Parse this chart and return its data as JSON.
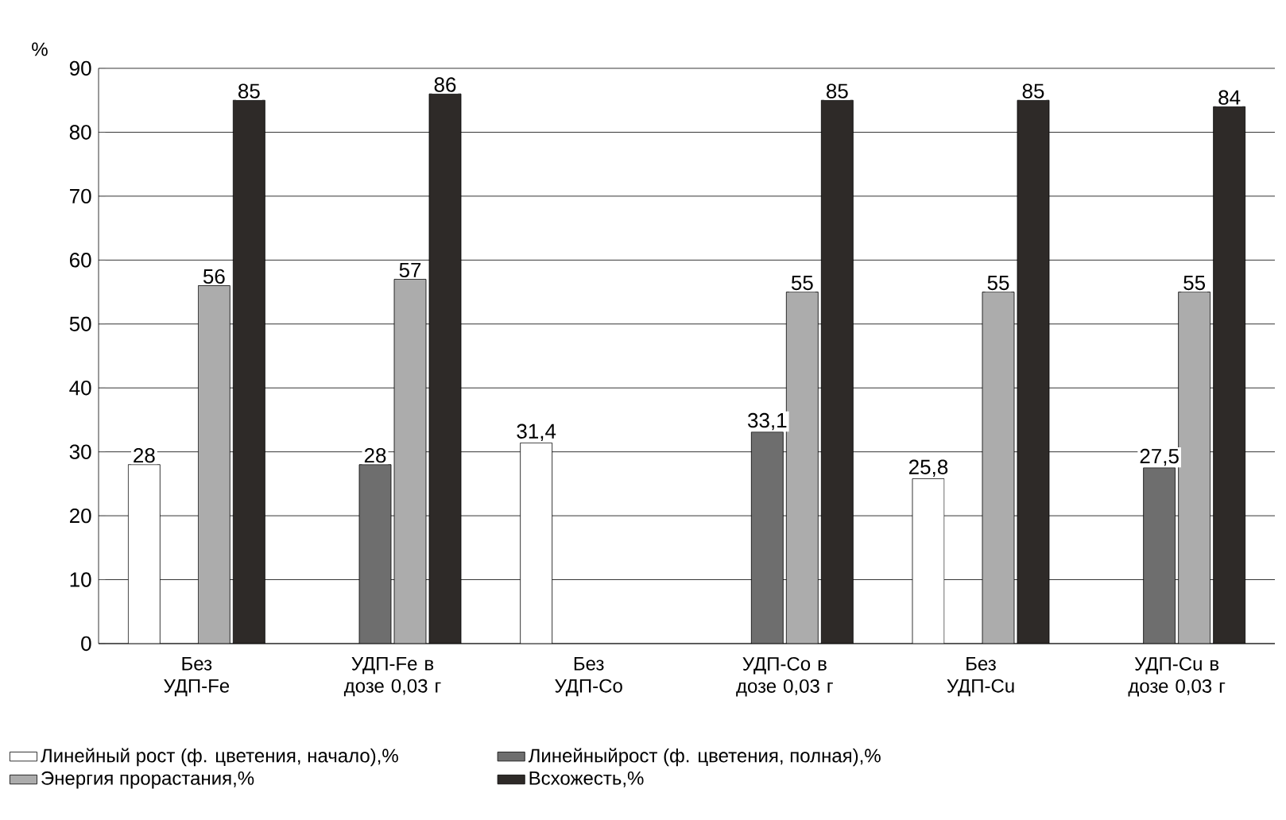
{
  "chart_data": {
    "type": "bar",
    "ylabel": "%",
    "categories": [
      "Без УДП-Fe",
      "УДП-Fe в дозе 0,03 г",
      "Без УДП-Co",
      "УДП-Co в дозе 0,03 г",
      "Без УДП-Cu",
      "УДП-Cu в дозе 0,03 г"
    ],
    "series": [
      {
        "name": "Линейный рост (ф. цветения, начало),%",
        "color": "#ffffff",
        "values": [
          28,
          null,
          31.4,
          null,
          25.8,
          null
        ],
        "value_labels": [
          "28",
          null,
          "31,4",
          null,
          "25,8",
          null
        ]
      },
      {
        "name": "Линейныйрост (ф. цветения, полная),%",
        "color": "#6e6e6e",
        "values": [
          null,
          28,
          null,
          33.1,
          null,
          27.5
        ],
        "value_labels": [
          null,
          "28",
          null,
          "33,1",
          null,
          "27,5"
        ]
      },
      {
        "name": "Энергия прорастания,%",
        "color": "#acacac",
        "values": [
          56,
          57,
          null,
          55,
          55,
          55
        ],
        "value_labels": [
          "56",
          "57",
          null,
          "55",
          "55",
          "55"
        ]
      },
      {
        "name": "Всхожесть,%",
        "color": "#2e2a28",
        "values": [
          85,
          86,
          null,
          85,
          85,
          84
        ],
        "value_labels": [
          "85",
          "86",
          null,
          "85",
          "85",
          "84"
        ]
      }
    ],
    "ylim": [
      0,
      90
    ],
    "yticks": [
      0,
      10,
      20,
      30,
      40,
      50,
      60,
      70,
      80,
      90
    ],
    "grid": "y",
    "legend": "bottom"
  }
}
